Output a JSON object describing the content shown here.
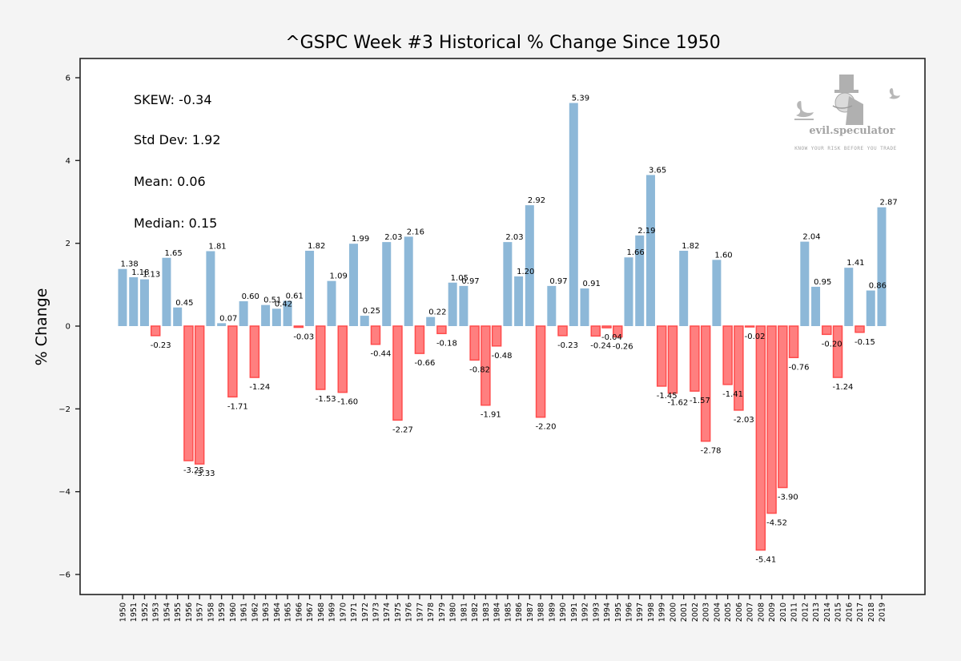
{
  "chart_data": {
    "type": "bar",
    "title": "^GSPC Week #3 Historical % Change Since 1950",
    "xlabel": "",
    "ylabel": "% Change",
    "ylim": [
      -6.5,
      6.5
    ],
    "yticks": [
      -6,
      -4,
      -2,
      0,
      2,
      4,
      6
    ],
    "ytick_labels": [
      "−6",
      "−4",
      "−2",
      "0",
      "2",
      "4",
      "6"
    ],
    "grid": false,
    "positive_color": "#8db8d8",
    "negative_color": "#ff7f7f",
    "negative_edge_color": "#ff4c4c",
    "categories": [
      "1950",
      "1951",
      "1952",
      "1953",
      "1954",
      "1955",
      "1956",
      "1957",
      "1958",
      "1959",
      "1960",
      "1961",
      "1962",
      "1963",
      "1964",
      "1965",
      "1966",
      "1967",
      "1968",
      "1969",
      "1970",
      "1971",
      "1972",
      "1973",
      "1974",
      "1975",
      "1976",
      "1977",
      "1978",
      "1979",
      "1980",
      "1981",
      "1982",
      "1983",
      "1984",
      "1985",
      "1986",
      "1987",
      "1988",
      "1989",
      "1990",
      "1991",
      "1992",
      "1993",
      "1994",
      "1995",
      "1996",
      "1997",
      "1998",
      "1999",
      "2000",
      "2001",
      "2002",
      "2003",
      "2004",
      "2005",
      "2006",
      "2007",
      "2008",
      "2009",
      "2010",
      "2011",
      "2012",
      "2013",
      "2014",
      "2015",
      "2016",
      "2017",
      "2018",
      "2019"
    ],
    "values": [
      1.38,
      1.18,
      1.13,
      -0.23,
      1.65,
      0.45,
      -3.25,
      -3.33,
      1.81,
      0.07,
      -1.71,
      0.6,
      -1.24,
      0.51,
      0.42,
      0.61,
      -0.03,
      1.82,
      -1.53,
      1.09,
      -1.6,
      1.99,
      0.25,
      -0.44,
      2.03,
      -2.27,
      2.16,
      -0.66,
      0.22,
      -0.18,
      1.05,
      0.97,
      -0.82,
      -1.91,
      -0.48,
      2.03,
      1.2,
      2.92,
      -2.2,
      0.97,
      -0.23,
      5.39,
      0.91,
      -0.24,
      -0.04,
      -0.26,
      1.66,
      2.19,
      3.65,
      -1.45,
      -1.62,
      1.82,
      -1.57,
      -2.78,
      1.6,
      -1.41,
      -2.03,
      -0.02,
      -5.41,
      -4.52,
      -3.9,
      -0.76,
      2.04,
      0.95,
      -0.2,
      -1.24,
      1.41,
      -0.15,
      0.86,
      2.87
    ],
    "annotations": [
      {
        "key": "skew",
        "text": "SKEW: -0.34"
      },
      {
        "key": "std_dev",
        "text": "Std Dev: 1.92"
      },
      {
        "key": "mean",
        "text": "Mean: 0.06"
      },
      {
        "key": "median",
        "text": "Median: 0.15"
      }
    ]
  },
  "watermark": {
    "brand": "evil.speculator",
    "tagline": "KNOW YOUR RISK BEFORE YOU TRADE"
  }
}
